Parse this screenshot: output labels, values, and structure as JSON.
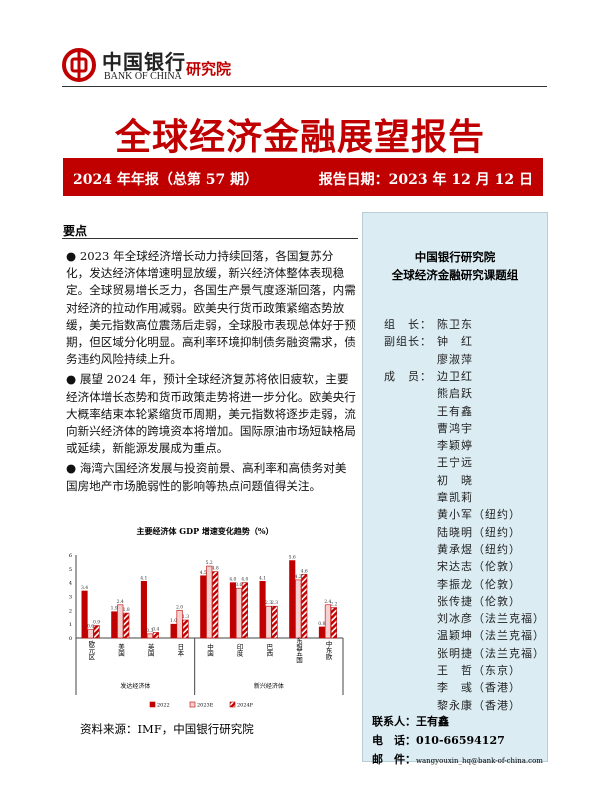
{
  "header": {
    "bank_name_cn": "中国银行",
    "bank_name_en": "BANK OF CHINA",
    "institute": "研究院"
  },
  "title": "全球经济金融展望报告",
  "band": {
    "issue": "2024 年年报（总第 57 期）",
    "date": "报告日期：2023 年 12 月 12 日"
  },
  "key_points": {
    "heading": "要点",
    "bullets": [
      "2023 年全球经济增长动力持续回落，各国复苏分化，发达经济体增速明显放缓，新兴经济体整体表现稳定。全球贸易增长乏力，各国生产景气度逐渐回落，内需对经济的拉动作用减弱。欧美央行货币政策紧缩态势放缓，美元指数高位震荡后走弱，全球股市表现总体好于预期，但区域分化明显。高利率环境抑制债务融资需求，债务违约风险持续上升。",
      "展望 2024 年，预计全球经济复苏将依旧疲软，主要经济体增长态势和货币政策走势将进一步分化。欧美央行大概率结束本轮紧缩货币周期，美元指数将逐步走弱，流向新兴经济体的跨境资本将增加。国际原油市场短缺格局或延续，新能源发展成为重点。",
      "海湾六国经济发展与投资前景、高利率和高债务对美国房地产市场脆弱性的影响等热点问题值得关注。"
    ]
  },
  "chart_data": {
    "type": "bar",
    "title": "主要经济体 GDP 增速变化趋势（%）",
    "ylim": [
      0,
      6
    ],
    "yticks": [
      "0",
      "1",
      "2",
      "3",
      "4",
      "5",
      "6"
    ],
    "categories": [
      "欧元区",
      "美国",
      "英国",
      "日本",
      "中国",
      "印度",
      "巴西",
      "东盟五国",
      "中东欧"
    ],
    "groups": [
      {
        "label": "发达经济体",
        "count": 4
      },
      {
        "label": "新兴经济体",
        "count": 5
      }
    ],
    "series": [
      {
        "name": "2022",
        "values": [
          3.4,
          1.9,
          4.1,
          1.0,
          4.5,
          4.0,
          4.1,
          5.6,
          0.8
        ]
      },
      {
        "name": "2023E",
        "values": [
          0.6,
          2.4,
          0.3,
          2.0,
          5.2,
          3.6,
          2.3,
          4.2,
          2.4
        ]
      },
      {
        "name": "2024F",
        "values": [
          0.9,
          1.8,
          0.4,
          1.3,
          4.8,
          4.0,
          2.3,
          4.6,
          2.2
        ]
      }
    ],
    "colors": [
      "#c00000",
      "#f2b8b8",
      "#c00000"
    ],
    "legend": "bottom"
  },
  "source": "资料来源：IMF，中国银行研究院",
  "panel": {
    "org": "中国银行研究院",
    "group": "全球经济金融研究课题组",
    "roles": [
      {
        "role": "组　长：",
        "names": [
          "陈卫东"
        ]
      },
      {
        "role": "副组长：",
        "names": [
          "钟　红",
          "廖淑萍"
        ]
      },
      {
        "role": "成　员：",
        "names": [
          "边卫红",
          "熊启跃",
          "王有鑫",
          "曹鸿宇",
          "李颖婷",
          "王宁远",
          "初　晓",
          "章凯莉",
          "黄小军（纽约）",
          "陆晓明（纽约）",
          "黄承煜（纽约）",
          "宋达志（伦敦）",
          "李振龙（伦敦）",
          "张传捷（伦敦）",
          "刘冰彦（法兰克福）",
          "温颖坤（法兰克福）",
          "张明捷（法兰克福）",
          "王　哲（东京）",
          "李　彧（香港）",
          "黎永康（香港）"
        ]
      }
    ],
    "contact_label": "联系人：王有鑫",
    "phone": "电　话：010-66594127",
    "email_label": "邮　件：",
    "email": "wangyouxin_hq@bank-of-china.com"
  }
}
